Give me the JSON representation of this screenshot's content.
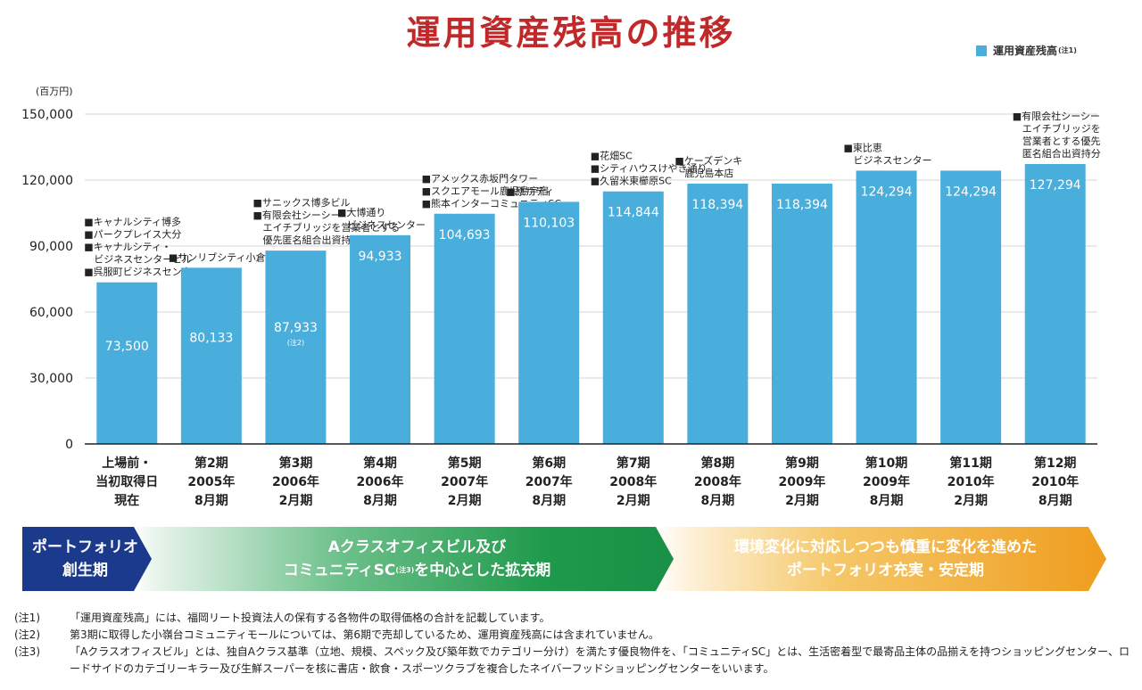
{
  "title": "運用資産残高の推移",
  "legend": {
    "label": "運用資産残高",
    "note": "(注1)"
  },
  "colors": {
    "bar": "#4aaedd",
    "title": "#c0282a",
    "axis": "#222222",
    "grid": "#d4d4d4"
  },
  "chart_data": {
    "type": "bar",
    "title": "運用資産残高の推移",
    "unit": "(百万円)",
    "ylim": [
      0,
      150000
    ],
    "yticks": [
      0,
      30000,
      60000,
      90000,
      120000,
      150000
    ],
    "ytick_labels": [
      "0",
      "30,000",
      "60,000",
      "90,000",
      "120,000",
      "150,000"
    ],
    "grid": true,
    "legend_position": "top-right",
    "categories": [
      [
        "上場前・",
        "当初取得日",
        "現在"
      ],
      [
        "第2期",
        "2005年",
        "8月期"
      ],
      [
        "第3期",
        "2006年",
        "2月期"
      ],
      [
        "第4期",
        "2006年",
        "8月期"
      ],
      [
        "第5期",
        "2007年",
        "2月期"
      ],
      [
        "第6期",
        "2007年",
        "8月期"
      ],
      [
        "第7期",
        "2008年",
        "2月期"
      ],
      [
        "第8期",
        "2008年",
        "8月期"
      ],
      [
        "第9期",
        "2009年",
        "2月期"
      ],
      [
        "第10期",
        "2009年",
        "8月期"
      ],
      [
        "第11期",
        "2010年",
        "2月期"
      ],
      [
        "第12期",
        "2010年",
        "8月期"
      ]
    ],
    "values": [
      73500,
      80133,
      87933,
      94933,
      104693,
      110103,
      114844,
      118394,
      118394,
      124294,
      124294,
      127294
    ],
    "value_labels": [
      "73,500",
      "80,133",
      "87,933",
      "94,933",
      "104,693",
      "110,103",
      "114,844",
      "118,394",
      "118,394",
      "124,294",
      "124,294",
      "127,294"
    ],
    "value_notes": [
      "",
      "",
      "(注2)",
      "",
      "",
      "",
      "",
      "",
      "",
      "",
      "",
      ""
    ],
    "annotations": [
      [
        "■キャナルシティ博多",
        "■パークプレイス大分",
        "■キャナルシティ・",
        "　ビジネスセンタービル",
        "■呉服町ビジネスセンター"
      ],
      [
        "■サンリブシティ小倉"
      ],
      [
        "■サニックス博多ビル",
        "■有限会社シーシー",
        "　エイチブリッジを営業者とする",
        "　優先匿名組合出資持分"
      ],
      [
        "■大博通り",
        "　ビジネスセンター"
      ],
      [
        "■アメックス赤坂門タワー",
        "■スクエアモール鹿児島宇宿",
        "■熊本インターコミュニティSC"
      ],
      [
        "■原サティ"
      ],
      [
        "■花畑SC",
        "■シティハウスけやき通り",
        "■久留米東櫛原SC"
      ],
      [
        "■ケーズデンキ",
        "　鹿児島本店"
      ],
      [],
      [
        "■東比恵",
        "　ビジネスセンター"
      ],
      [],
      [
        "■有限会社シーシー",
        "　エイチブリッジを",
        "　営業者とする優先",
        "　匿名組合出資持分"
      ]
    ]
  },
  "phases": [
    {
      "line1": "ポートフォリオ",
      "line2": "創生期"
    },
    {
      "line1": "Aクラスオフィスビル及び",
      "line2a": "コミュニティSC",
      "line2note": "(注3)",
      "line2b": "を中心とした拡充期"
    },
    {
      "line1": "環境変化に対応しつつも慎重に変化を進めた",
      "line2": "ポートフォリオ充実・安定期"
    }
  ],
  "notes": [
    {
      "label": "(注1)",
      "text": "「運用資産残高」には、福岡リート投資法人の保有する各物件の取得価格の合計を記載しています。"
    },
    {
      "label": "(注2)",
      "text": "第3期に取得した小嶺台コミュニティモールについては、第6期で売却しているため、運用資産残高には含まれていません。"
    },
    {
      "label": "(注3)",
      "text": "「Aクラスオフィスビル」とは、独自Aクラス基準（立地、規模、スペック及び築年数でカテゴリー分け）を満たす優良物件を、「コミュニティSC」とは、生活密着型で最寄品主体の品揃えを持つショッピングセンター、ロードサイドのカテゴリーキラー及び生鮮スーパーを核に書店・飲食・スポーツクラブを複合したネイバーフッドショッピングセンターをいいます。"
    }
  ]
}
